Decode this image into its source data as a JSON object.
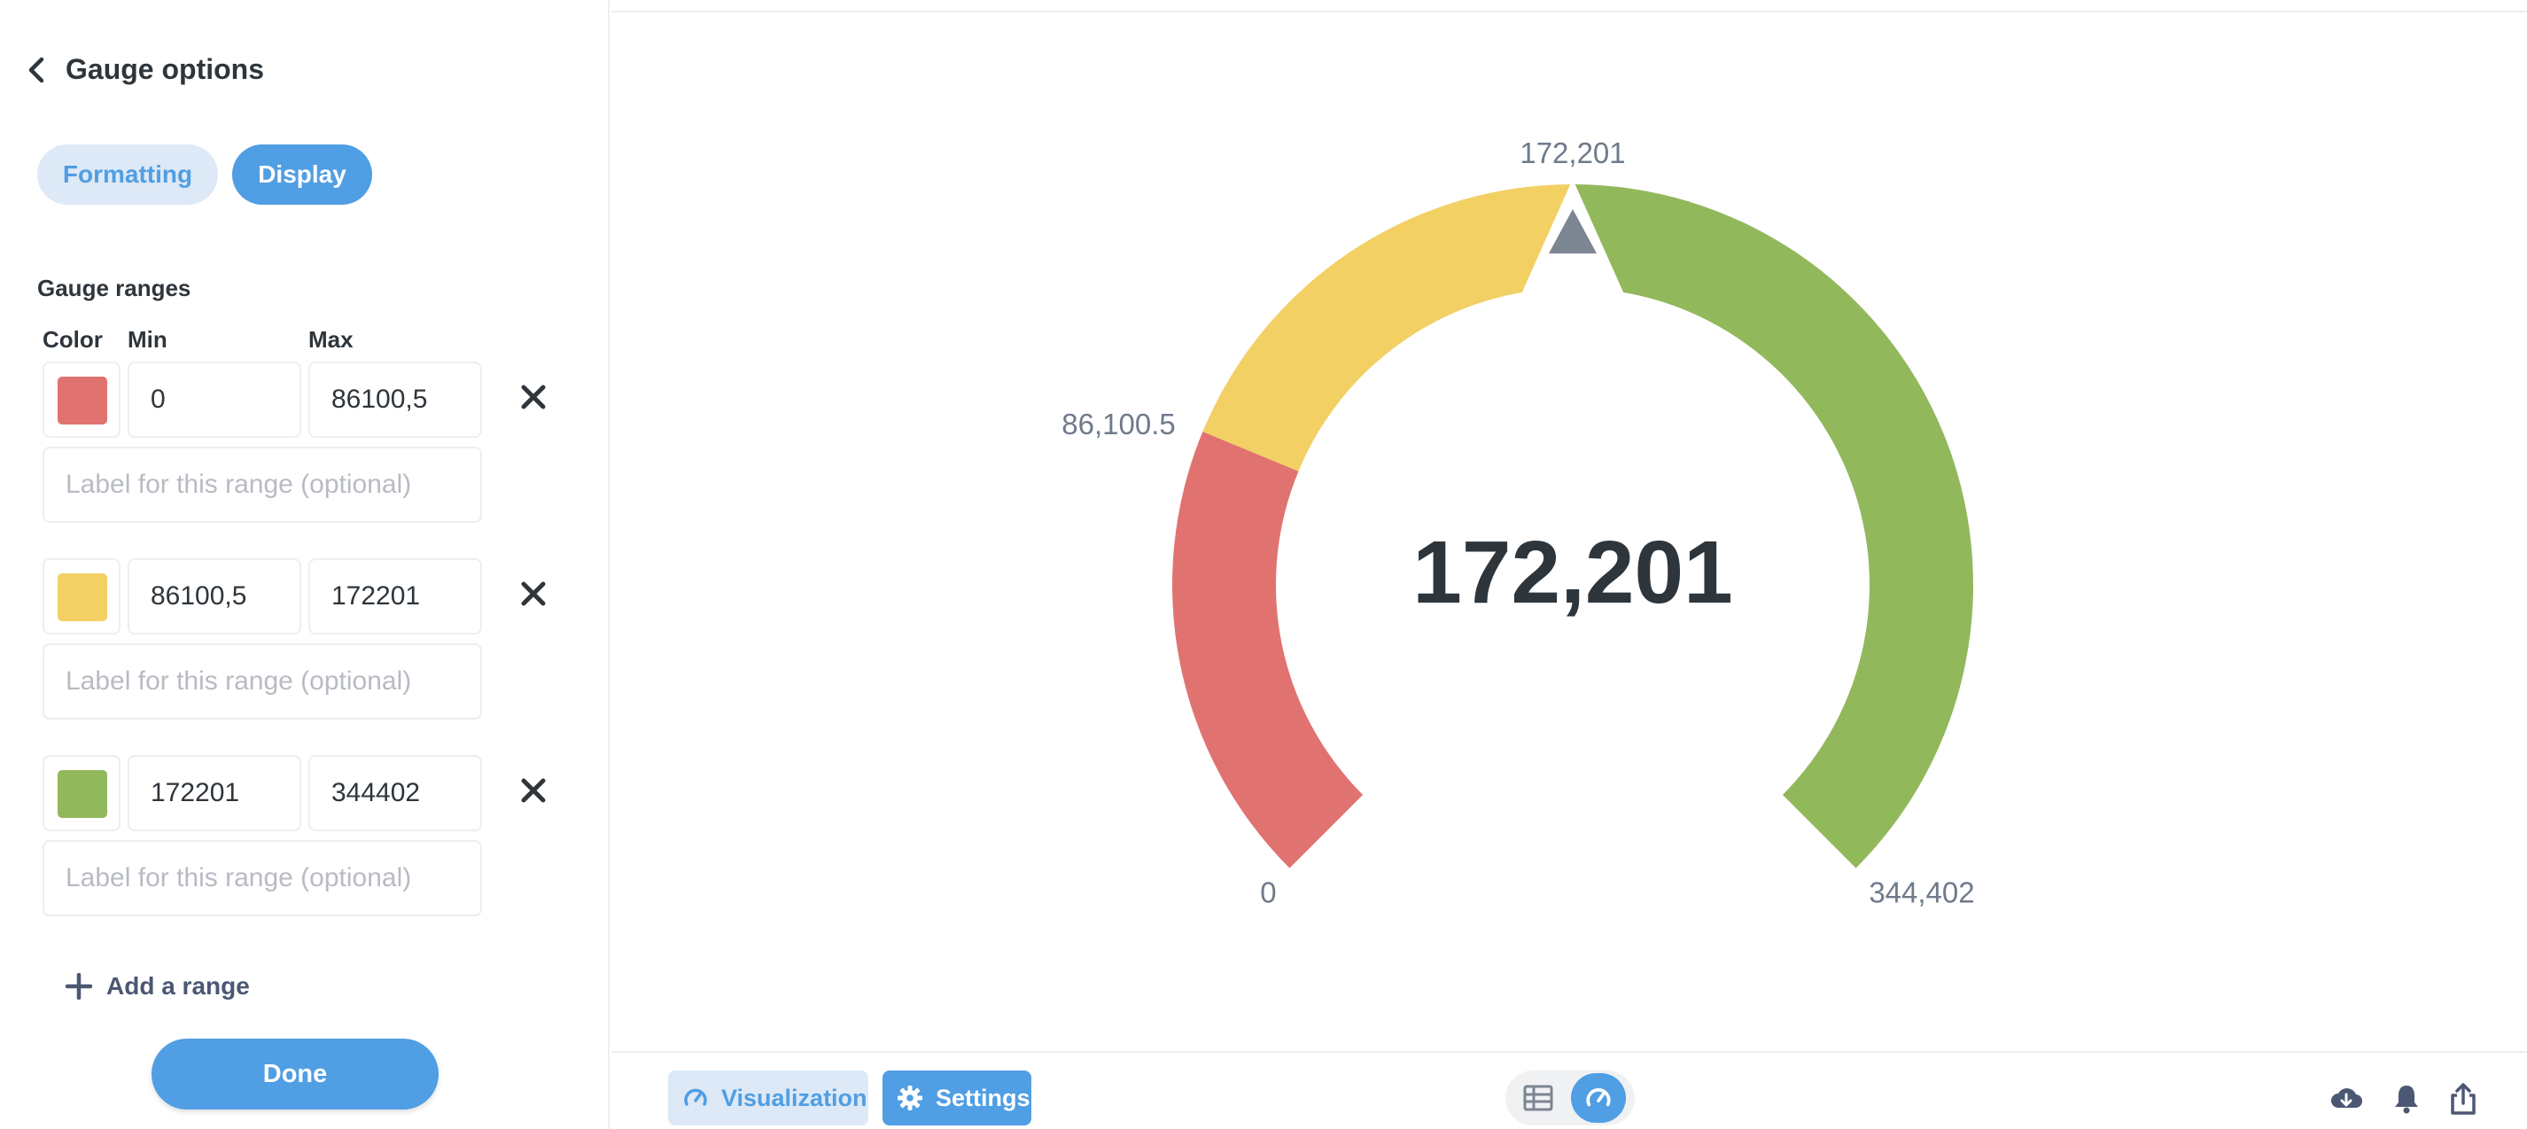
{
  "sidebar": {
    "title": "Gauge options",
    "tabs": [
      {
        "label": "Formatting",
        "active": false
      },
      {
        "label": "Display",
        "active": true
      }
    ],
    "section_title": "Gauge ranges",
    "columns": {
      "color": "Color",
      "min": "Min",
      "max": "Max"
    },
    "ranges": [
      {
        "color": "#e07370",
        "min": "0",
        "max": "86100,5",
        "label_placeholder": "Label for this range (optional)"
      },
      {
        "color": "#f2d064",
        "min": "86100,5",
        "max": "172201",
        "label_placeholder": "Label for this range (optional)"
      },
      {
        "color": "#92b85c",
        "min": "172201",
        "max": "344402",
        "label_placeholder": "Label for this range (optional)"
      }
    ],
    "add_range_label": "Add a range",
    "done_label": "Done"
  },
  "gauge": {
    "value_label": "172,201",
    "value": 172201,
    "min": 0,
    "max": 344402,
    "tick_labels": [
      "0",
      "86,100.5",
      "172,201",
      "344,402"
    ],
    "segments": [
      {
        "from": 0,
        "to": 86100.5,
        "color": "#e07370"
      },
      {
        "from": 86100.5,
        "to": 172201,
        "color": "#f2d064"
      },
      {
        "from": 172201,
        "to": 344402,
        "color": "#92b85c"
      }
    ],
    "needle_color": "#7c8592"
  },
  "footer": {
    "visualization_label": "Visualization",
    "settings_label": "Settings",
    "view_toggle": [
      {
        "icon": "table-icon",
        "active": false
      },
      {
        "icon": "gauge-icon",
        "active": true
      }
    ],
    "right_icons": [
      "download-icon",
      "bell-icon",
      "share-icon"
    ]
  },
  "colors": {
    "brand": "#509ee3",
    "brand_light": "#dde9f6",
    "text_dark": "#2e353b",
    "text_light": "#b8bbc3",
    "tick_label": "#6f7a8b"
  }
}
